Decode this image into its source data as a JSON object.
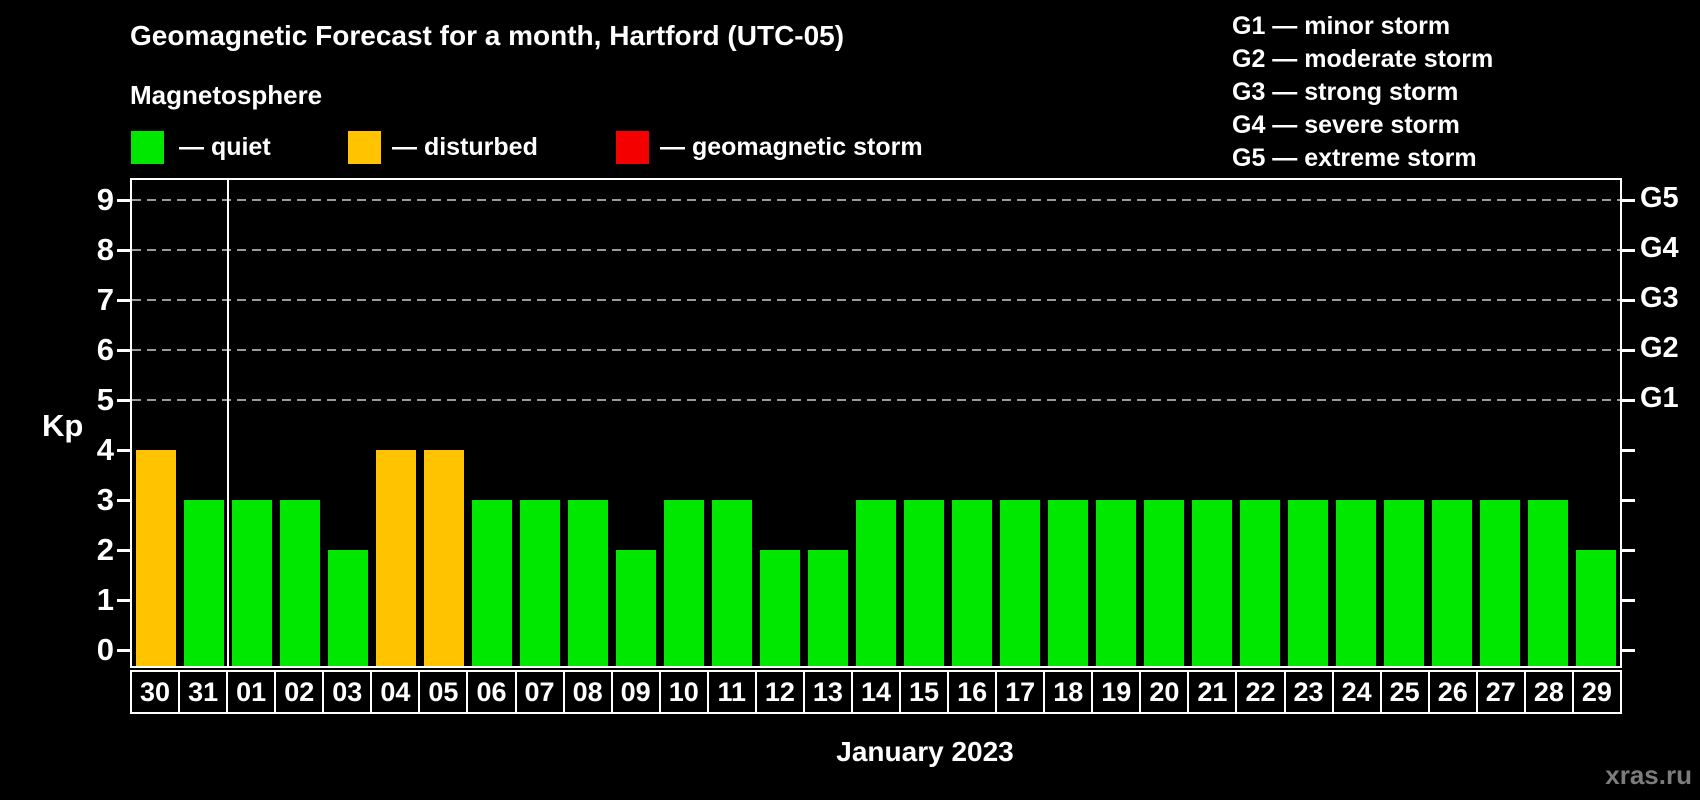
{
  "title": "Geomagnetic Forecast for a month, Hartford (UTC-05)",
  "subtitle": "Magnetosphere",
  "status_legend": [
    {
      "key": "quiet",
      "label": "— quiet"
    },
    {
      "key": "disturbed",
      "label": "— disturbed"
    },
    {
      "key": "storm",
      "label": "— geomagnetic storm"
    }
  ],
  "g_scale_legend": [
    "G1 — minor storm",
    "G2 — moderate storm",
    "G3 — strong storm",
    "G4 — severe storm",
    "G5 — extreme storm"
  ],
  "footer": {
    "caption": "January 2023",
    "watermark": "xras.ru"
  },
  "colors": {
    "quiet": "#00e800",
    "disturbed": "#ffc300",
    "storm": "#f40000",
    "grid": "#9a9a9a",
    "axis": "#ffffff",
    "background": "#000000",
    "text": "#ffffff",
    "watermark": "#7c7c7c"
  },
  "chart_data": {
    "type": "bar",
    "title": "Geomagnetic Forecast for a month, Hartford (UTC-05)",
    "xlabel": "January 2023",
    "ylabel": "Kp",
    "ylim": [
      0,
      9.5
    ],
    "grid": "dashed horizontal at Kp 5-9 only",
    "legend_position": "top-left and top-right",
    "y_ticks": [
      0,
      1,
      2,
      3,
      4,
      5,
      6,
      7,
      8,
      9
    ],
    "right_axis_labels": [
      {
        "kp": 5,
        "label": "G1"
      },
      {
        "kp": 6,
        "label": "G2"
      },
      {
        "kp": 7,
        "label": "G3"
      },
      {
        "kp": 8,
        "label": "G4"
      },
      {
        "kp": 9,
        "label": "G5"
      }
    ],
    "gridline_levels": [
      5,
      6,
      7,
      8,
      9
    ],
    "categories": [
      "30",
      "31",
      "01",
      "02",
      "03",
      "04",
      "05",
      "06",
      "07",
      "08",
      "09",
      "10",
      "11",
      "12",
      "13",
      "14",
      "15",
      "16",
      "17",
      "18",
      "19",
      "20",
      "21",
      "22",
      "23",
      "24",
      "25",
      "26",
      "27",
      "28",
      "29"
    ],
    "values": [
      4,
      3,
      3,
      3,
      2,
      4,
      4,
      3,
      3,
      3,
      2,
      3,
      3,
      2,
      2,
      3,
      3,
      3,
      3,
      3,
      3,
      3,
      3,
      3,
      3,
      3,
      3,
      3,
      3,
      3,
      2
    ],
    "states": [
      "disturbed",
      "quiet",
      "quiet",
      "quiet",
      "quiet",
      "disturbed",
      "disturbed",
      "quiet",
      "quiet",
      "quiet",
      "quiet",
      "quiet",
      "quiet",
      "quiet",
      "quiet",
      "quiet",
      "quiet",
      "quiet",
      "quiet",
      "quiet",
      "quiet",
      "quiet",
      "quiet",
      "quiet",
      "quiet",
      "quiet",
      "quiet",
      "quiet",
      "quiet",
      "quiet",
      "quiet"
    ],
    "month_separator_after_category": "31"
  }
}
